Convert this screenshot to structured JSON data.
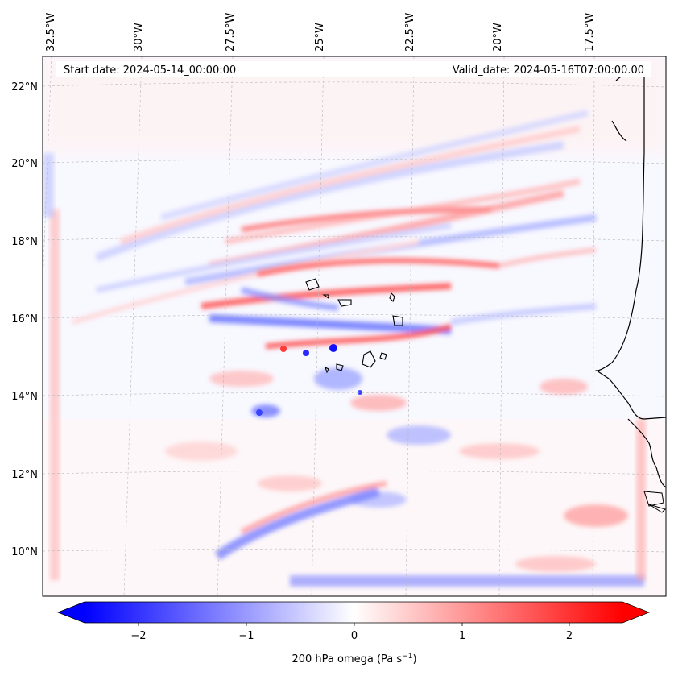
{
  "header": {
    "start_label": "Start date: 2024-05-14_00:00:00",
    "valid_label": "Valid_date: 2024-05-16T07:00:00.00"
  },
  "map": {
    "lon_labels": [
      "32.5°W",
      "30°W",
      "27.5°W",
      "25°W",
      "22.5°W",
      "20°W",
      "17.5°W"
    ],
    "lat_labels": [
      "22°N",
      "20°N",
      "18°N",
      "16°N",
      "14°N",
      "12°N",
      "10°N"
    ],
    "gridlines": true,
    "colors": {
      "negative": "#0000ff",
      "zero": "#ffffff",
      "positive": "#ff0000",
      "coast": "#000000"
    }
  },
  "colorbar": {
    "ticks": [
      "−2",
      "−1",
      "0",
      "1",
      "2"
    ],
    "label": "200 hPa omega (Pa s",
    "label_sup": "−1",
    "label_end": ")",
    "range": [
      -2.7,
      2.7
    ],
    "extend": "both"
  }
}
